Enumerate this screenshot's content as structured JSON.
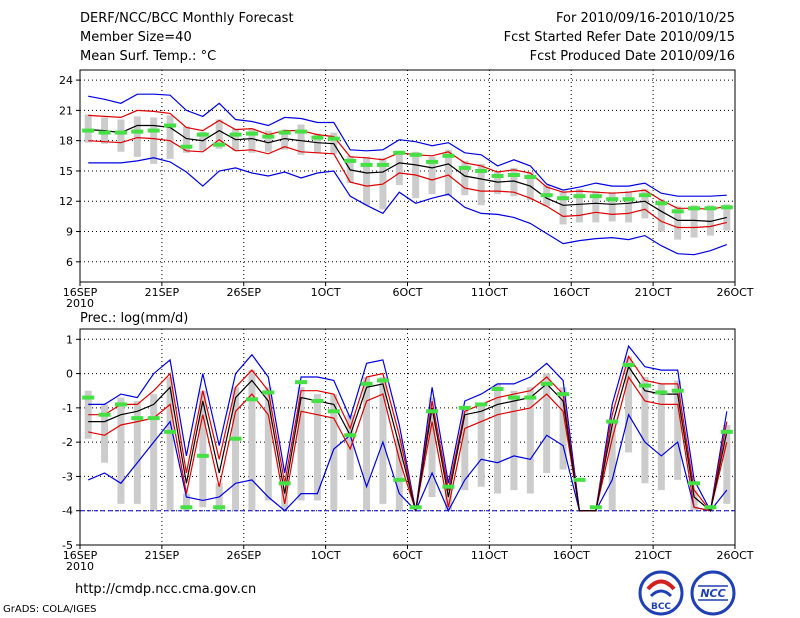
{
  "header": {
    "title": "DERF/NCC/BCC Monthly Forecast",
    "member_size": "Member Size=40",
    "variable": "Mean Surf. Temp.: °C",
    "period": "For 2010/09/16-2010/10/25",
    "started": "Fcst Started Refer Date 2010/09/15",
    "produced": "Fcst Produced Date 2010/09/16"
  },
  "footer": {
    "url": "http://cmdp.ncc.cma.gov.cn",
    "credit": "GrADS: COLA/IGES",
    "logo_bcc": "BCC",
    "logo_ncc": "NCC"
  },
  "colors": {
    "ensemble_mean": "#000000",
    "spread": "#e00000",
    "extreme": "#0000e0",
    "member_range": "#cccccc",
    "median": "#44e044",
    "dotted_grid": "#000000"
  },
  "chart_data": [
    {
      "type": "line",
      "title": "Mean Surf. Temp.: °C",
      "ylim": [
        4,
        25
      ],
      "yticks": [
        "6",
        "9",
        "12",
        "15",
        "18",
        "21",
        "24"
      ],
      "xticks": [
        "16SEP",
        "21SEP",
        "26SEP",
        "1OCT",
        "6OCT",
        "11OCT",
        "16OCT",
        "21OCT",
        "26OCT"
      ],
      "xtick_days": [
        0,
        5,
        10,
        15,
        20,
        25,
        30,
        35,
        40
      ],
      "year_label": "2010",
      "x": [
        0,
        1,
        2,
        3,
        4,
        5,
        6,
        7,
        8,
        9,
        10,
        11,
        12,
        13,
        14,
        15,
        16,
        17,
        18,
        19,
        20,
        21,
        22,
        23,
        24,
        25,
        26,
        27,
        28,
        29,
        30,
        31,
        32,
        33,
        34,
        35,
        36,
        37,
        38,
        39
      ],
      "series": [
        {
          "name": "max",
          "values": [
            22.4,
            22.1,
            21.7,
            22.6,
            22.6,
            22.5,
            21.0,
            20.4,
            21.7,
            20.1,
            19.9,
            19.5,
            20.3,
            20.2,
            19.8,
            19.8,
            17.1,
            17.0,
            17.1,
            18.1,
            17.9,
            17.5,
            17.8,
            16.8,
            16.6,
            15.5,
            16.1,
            15.5,
            13.7,
            13.1,
            13.4,
            13.8,
            13.5,
            13.5,
            13.8,
            12.8,
            12.5,
            12.5,
            12.5,
            12.6
          ]
        },
        {
          "name": "upper",
          "values": [
            20.5,
            20.4,
            20.3,
            21.0,
            20.9,
            20.7,
            19.3,
            19.0,
            20.0,
            19.1,
            19.2,
            18.6,
            19.0,
            19.0,
            18.6,
            18.4,
            16.4,
            16.3,
            16.1,
            16.8,
            16.6,
            16.5,
            16.9,
            15.8,
            15.5,
            14.9,
            15.1,
            14.8,
            13.4,
            12.9,
            13.0,
            12.9,
            12.8,
            12.9,
            13.1,
            12.1,
            11.3,
            11.3,
            11.2,
            11.5
          ]
        },
        {
          "name": "mean",
          "values": [
            19.1,
            19.0,
            18.8,
            19.5,
            19.5,
            19.3,
            18.2,
            18.0,
            19.0,
            18.1,
            18.2,
            17.8,
            18.2,
            18.0,
            17.8,
            17.7,
            15.1,
            14.8,
            14.9,
            15.8,
            15.6,
            15.3,
            15.7,
            14.5,
            14.2,
            13.9,
            14.0,
            13.5,
            12.3,
            11.6,
            11.7,
            11.8,
            11.7,
            11.8,
            12.0,
            11.0,
            10.1,
            10.1,
            10.0,
            10.4
          ]
        },
        {
          "name": "lower",
          "values": [
            18.0,
            17.9,
            17.8,
            18.3,
            18.2,
            18.0,
            17.0,
            16.9,
            18.1,
            17.0,
            17.1,
            16.7,
            17.4,
            16.9,
            16.8,
            16.7,
            13.9,
            13.5,
            13.7,
            14.8,
            14.6,
            14.1,
            14.6,
            13.3,
            13.0,
            13.0,
            12.9,
            12.3,
            11.5,
            10.5,
            10.6,
            10.9,
            10.7,
            10.8,
            11.2,
            10.0,
            9.4,
            9.4,
            9.5,
            9.9
          ]
        },
        {
          "name": "min",
          "values": [
            15.8,
            15.8,
            15.8,
            16.0,
            16.3,
            15.9,
            14.9,
            13.5,
            15.0,
            15.3,
            14.8,
            14.5,
            14.9,
            14.3,
            14.8,
            15.0,
            12.5,
            11.6,
            10.8,
            12.9,
            11.8,
            12.3,
            12.7,
            11.4,
            10.8,
            10.7,
            10.4,
            9.8,
            8.8,
            7.8,
            8.1,
            8.3,
            8.4,
            8.2,
            8.6,
            7.6,
            6.8,
            6.7,
            7.1,
            7.7
          ]
        },
        {
          "name": "ens_high",
          "values": [
            20.6,
            20.3,
            20.1,
            20.4,
            20.3,
            20.5,
            19.4,
            18.9,
            20.1,
            19.2,
            19.2,
            19.0,
            19.1,
            19.6,
            18.7,
            18.8,
            16.5,
            16.4,
            16.3,
            17.0,
            16.9,
            16.4,
            17.1,
            16.0,
            15.7,
            15.0,
            15.3,
            14.9,
            13.6,
            13.0,
            13.2,
            13.0,
            12.9,
            13.0,
            13.2,
            12.2,
            11.5,
            11.6,
            11.6,
            11.7
          ]
        },
        {
          "name": "ens_low",
          "values": [
            17.8,
            17.7,
            16.9,
            16.4,
            15.7,
            16.2,
            16.8,
            17.0,
            17.2,
            17.0,
            16.8,
            16.9,
            17.1,
            16.6,
            16.8,
            16.7,
            13.8,
            11.6,
            11.2,
            13.6,
            12.3,
            12.7,
            12.5,
            12.6,
            11.6,
            12.7,
            12.5,
            12.1,
            11.5,
            9.7,
            9.9,
            9.9,
            10.0,
            9.9,
            10.3,
            9.0,
            8.2,
            8.4,
            8.6,
            9.1
          ]
        },
        {
          "name": "median",
          "values": [
            19.0,
            18.8,
            18.8,
            18.9,
            19.0,
            19.5,
            17.4,
            18.6,
            17.6,
            18.6,
            18.7,
            18.4,
            18.8,
            18.9,
            18.3,
            18.2,
            16.0,
            15.6,
            15.6,
            16.8,
            16.6,
            15.9,
            16.5,
            15.3,
            15.0,
            14.5,
            14.6,
            14.4,
            12.6,
            12.3,
            12.5,
            12.5,
            12.2,
            12.2,
            12.6,
            11.8,
            11.0,
            11.3,
            11.3,
            11.4
          ]
        }
      ]
    },
    {
      "type": "line",
      "title": "Prec.: log(mm/d)",
      "ylim": [
        -5,
        1.3
      ],
      "yticks": [
        "-5",
        "-4",
        "-3",
        "-2",
        "-1",
        "0",
        "1"
      ],
      "xticks": [
        "16SEP",
        "21SEP",
        "26SEP",
        "1OCT",
        "6OCT",
        "11OCT",
        "16OCT",
        "21OCT",
        "26OCT"
      ],
      "xtick_days": [
        0,
        5,
        10,
        15,
        20,
        25,
        30,
        35,
        40
      ],
      "year_label": "2010",
      "x": [
        0,
        1,
        2,
        3,
        4,
        5,
        6,
        7,
        8,
        9,
        10,
        11,
        12,
        13,
        14,
        15,
        16,
        17,
        18,
        19,
        20,
        21,
        22,
        23,
        24,
        25,
        26,
        27,
        28,
        29,
        30,
        31,
        32,
        33,
        34,
        35,
        36,
        37,
        38,
        39
      ],
      "series": [
        {
          "name": "max",
          "values": [
            -0.9,
            -0.9,
            -0.6,
            -0.7,
            0.0,
            0.4,
            -2.4,
            0.0,
            -2.1,
            0.0,
            0.55,
            -0.1,
            -2.9,
            -0.1,
            -0.1,
            -0.2,
            -1.3,
            0.3,
            0.4,
            -1.5,
            -4.0,
            -0.4,
            -3.2,
            -0.8,
            -0.6,
            -0.3,
            -0.3,
            -0.1,
            0.3,
            -0.2,
            -4.0,
            -4.0,
            -0.9,
            0.8,
            0.2,
            0.1,
            0.1,
            -3.1,
            -4.0,
            -1.1
          ]
        },
        {
          "name": "upper",
          "values": [
            -1.2,
            -1.2,
            -0.9,
            -0.9,
            -0.5,
            0.0,
            -2.9,
            -0.5,
            -2.5,
            -0.4,
            0.1,
            -0.5,
            -3.2,
            -0.5,
            -0.5,
            -0.6,
            -1.6,
            -0.1,
            0.0,
            -1.8,
            -4.0,
            -0.8,
            -3.4,
            -1.1,
            -0.9,
            -0.7,
            -0.6,
            -0.5,
            -0.1,
            -0.6,
            -4.0,
            -4.0,
            -1.2,
            0.5,
            -0.2,
            -0.3,
            -0.3,
            -3.4,
            -4.0,
            -1.4
          ]
        },
        {
          "name": "mean",
          "values": [
            -1.4,
            -1.4,
            -1.2,
            -1.1,
            -0.9,
            -0.4,
            -3.2,
            -0.8,
            -2.9,
            -0.7,
            -0.2,
            -0.8,
            -3.5,
            -0.7,
            -0.8,
            -0.9,
            -1.8,
            -0.4,
            -0.3,
            -2.1,
            -4.0,
            -1.0,
            -3.6,
            -1.2,
            -1.1,
            -0.9,
            -0.8,
            -0.7,
            -0.3,
            -0.8,
            -4.0,
            -4.0,
            -1.5,
            0.2,
            -0.5,
            -0.6,
            -0.6,
            -3.6,
            -4.0,
            -1.7
          ]
        },
        {
          "name": "lower",
          "values": [
            -1.7,
            -1.8,
            -1.5,
            -1.4,
            -1.3,
            -0.9,
            -3.5,
            -1.2,
            -3.3,
            -1.1,
            -0.6,
            -1.2,
            -3.8,
            -1.1,
            -1.2,
            -1.3,
            -2.2,
            -0.8,
            -0.6,
            -2.5,
            -4.0,
            -1.4,
            -3.9,
            -1.6,
            -1.4,
            -1.2,
            -1.1,
            -1.0,
            -0.6,
            -1.1,
            -4.0,
            -4.0,
            -1.9,
            -0.1,
            -0.8,
            -0.9,
            -0.9,
            -3.9,
            -4.0,
            -2.0
          ]
        },
        {
          "name": "min",
          "values": [
            -3.1,
            -2.9,
            -3.2,
            -2.6,
            -2.0,
            -1.4,
            -3.6,
            -3.7,
            -3.6,
            -3.2,
            -3.1,
            -3.6,
            -4.0,
            -3.5,
            -3.5,
            -2.2,
            -1.8,
            -3.3,
            -2.0,
            -3.5,
            -4.0,
            -2.9,
            -4.0,
            -3.1,
            -2.5,
            -2.6,
            -2.4,
            -2.5,
            -1.8,
            -2.1,
            -4.0,
            -4.0,
            -3.1,
            -1.2,
            -2.0,
            -2.4,
            -2.0,
            -3.9,
            -4.0,
            -3.4
          ]
        },
        {
          "name": "ens_high",
          "values": [
            -0.5,
            -0.9,
            -0.7,
            -0.8,
            -0.6,
            -0.1,
            -3.5,
            -0.5,
            -3.2,
            -0.4,
            0.1,
            -0.4,
            -3.3,
            -0.4,
            -0.6,
            -0.6,
            -1.2,
            -0.1,
            -0.1,
            -1.9,
            -4.0,
            -0.7,
            -3.3,
            -1.0,
            -0.9,
            -0.3,
            -0.5,
            -0.4,
            0.0,
            -0.4,
            -4.0,
            -4.0,
            -1.4,
            0.5,
            -0.1,
            -0.3,
            -0.2,
            -3.4,
            -3.9,
            -1.5
          ]
        },
        {
          "name": "ens_low",
          "values": [
            -1.9,
            -2.6,
            -3.8,
            -3.8,
            -4.0,
            -4.0,
            -4.0,
            -3.9,
            -4.0,
            -4.0,
            -4.0,
            -3.7,
            -4.0,
            -3.7,
            -3.7,
            -4.0,
            -3.1,
            -4.0,
            -3.8,
            -4.0,
            -4.0,
            -3.6,
            -4.0,
            -3.4,
            -3.3,
            -3.5,
            -3.4,
            -3.5,
            -2.9,
            -2.8,
            -4.0,
            -4.0,
            -4.0,
            -2.3,
            -3.2,
            -3.4,
            -3.1,
            -4.0,
            -4.0,
            -3.8
          ]
        },
        {
          "name": "median",
          "values": [
            -0.7,
            -1.2,
            -0.9,
            -1.3,
            -1.3,
            -1.7,
            -3.9,
            -2.4,
            -3.9,
            -1.9,
            -0.75,
            -0.55,
            -3.2,
            -0.25,
            -0.8,
            -1.1,
            -1.8,
            -0.3,
            -0.2,
            -3.1,
            -3.9,
            -1.1,
            -3.3,
            -1.0,
            -0.9,
            -0.45,
            -0.7,
            -0.7,
            -0.3,
            -0.6,
            -3.1,
            -3.9,
            -1.4,
            0.25,
            -0.35,
            -0.55,
            -0.5,
            -3.2,
            -3.9,
            -1.7
          ]
        }
      ]
    }
  ]
}
